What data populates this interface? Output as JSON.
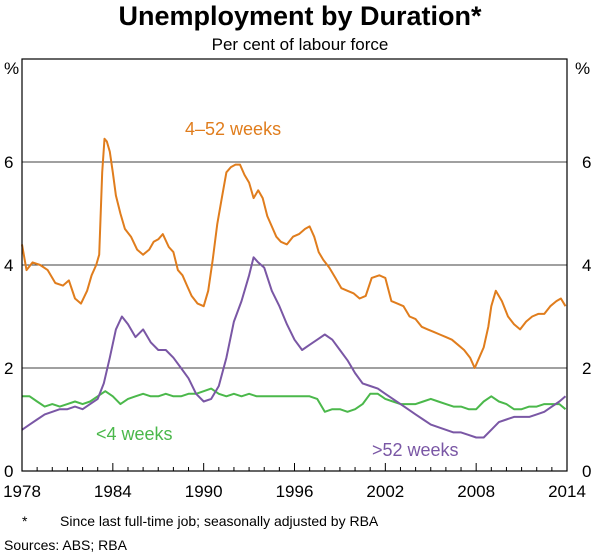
{
  "chart_data": {
    "type": "line",
    "title": "Unemployment by Duration*",
    "subtitle": "Per cent of labour force",
    "ylabel_left": "%",
    "ylabel_right": "%",
    "ylim": [
      0,
      8
    ],
    "yticks": [
      0,
      2,
      4,
      6
    ],
    "xlim": [
      1978,
      2014
    ],
    "xticks": [
      1978,
      1984,
      1990,
      1996,
      2002,
      2008,
      2014
    ],
    "series": [
      {
        "name": "4–52 weeks",
        "color": "#e07d1d",
        "points": [
          [
            1978.0,
            4.4
          ],
          [
            1978.3,
            3.9
          ],
          [
            1978.7,
            4.05
          ],
          [
            1979.2,
            4.0
          ],
          [
            1979.7,
            3.9
          ],
          [
            1980.2,
            3.65
          ],
          [
            1980.7,
            3.6
          ],
          [
            1981.1,
            3.7
          ],
          [
            1981.5,
            3.35
          ],
          [
            1981.9,
            3.25
          ],
          [
            1982.3,
            3.5
          ],
          [
            1982.6,
            3.8
          ],
          [
            1982.9,
            4.0
          ],
          [
            1983.1,
            4.2
          ],
          [
            1983.3,
            5.8
          ],
          [
            1983.45,
            6.45
          ],
          [
            1983.6,
            6.4
          ],
          [
            1983.8,
            6.2
          ],
          [
            1984.0,
            5.8
          ],
          [
            1984.2,
            5.35
          ],
          [
            1984.5,
            5.0
          ],
          [
            1984.8,
            4.7
          ],
          [
            1985.2,
            4.55
          ],
          [
            1985.6,
            4.3
          ],
          [
            1986.0,
            4.2
          ],
          [
            1986.4,
            4.3
          ],
          [
            1986.7,
            4.45
          ],
          [
            1987.0,
            4.5
          ],
          [
            1987.3,
            4.6
          ],
          [
            1987.7,
            4.35
          ],
          [
            1988.0,
            4.25
          ],
          [
            1988.3,
            3.9
          ],
          [
            1988.6,
            3.8
          ],
          [
            1988.9,
            3.6
          ],
          [
            1989.2,
            3.4
          ],
          [
            1989.6,
            3.25
          ],
          [
            1990.0,
            3.2
          ],
          [
            1990.3,
            3.5
          ],
          [
            1990.6,
            4.1
          ],
          [
            1990.9,
            4.8
          ],
          [
            1991.2,
            5.3
          ],
          [
            1991.5,
            5.8
          ],
          [
            1991.8,
            5.9
          ],
          [
            1992.1,
            5.95
          ],
          [
            1992.4,
            5.95
          ],
          [
            1992.7,
            5.75
          ],
          [
            1993.0,
            5.6
          ],
          [
            1993.3,
            5.3
          ],
          [
            1993.6,
            5.45
          ],
          [
            1993.9,
            5.3
          ],
          [
            1994.2,
            4.95
          ],
          [
            1994.5,
            4.75
          ],
          [
            1994.8,
            4.55
          ],
          [
            1995.1,
            4.45
          ],
          [
            1995.5,
            4.4
          ],
          [
            1995.9,
            4.55
          ],
          [
            1996.3,
            4.6
          ],
          [
            1996.7,
            4.7
          ],
          [
            1997.0,
            4.75
          ],
          [
            1997.3,
            4.55
          ],
          [
            1997.6,
            4.25
          ],
          [
            1997.9,
            4.1
          ],
          [
            1998.3,
            3.95
          ],
          [
            1998.7,
            3.75
          ],
          [
            1999.1,
            3.55
          ],
          [
            1999.5,
            3.5
          ],
          [
            1999.9,
            3.45
          ],
          [
            2000.3,
            3.35
          ],
          [
            2000.7,
            3.4
          ],
          [
            2001.1,
            3.75
          ],
          [
            2001.6,
            3.8
          ],
          [
            2002.0,
            3.75
          ],
          [
            2002.4,
            3.3
          ],
          [
            2002.8,
            3.25
          ],
          [
            2003.2,
            3.2
          ],
          [
            2003.6,
            3.0
          ],
          [
            2004.0,
            2.95
          ],
          [
            2004.4,
            2.8
          ],
          [
            2004.8,
            2.75
          ],
          [
            2005.2,
            2.7
          ],
          [
            2005.6,
            2.65
          ],
          [
            2006.0,
            2.6
          ],
          [
            2006.4,
            2.55
          ],
          [
            2006.8,
            2.45
          ],
          [
            2007.2,
            2.35
          ],
          [
            2007.6,
            2.2
          ],
          [
            2007.9,
            2.0
          ],
          [
            2008.2,
            2.2
          ],
          [
            2008.5,
            2.4
          ],
          [
            2008.8,
            2.8
          ],
          [
            2009.0,
            3.2
          ],
          [
            2009.3,
            3.5
          ],
          [
            2009.7,
            3.3
          ],
          [
            2010.1,
            3.0
          ],
          [
            2010.5,
            2.85
          ],
          [
            2010.9,
            2.75
          ],
          [
            2011.3,
            2.9
          ],
          [
            2011.7,
            3.0
          ],
          [
            2012.1,
            3.05
          ],
          [
            2012.5,
            3.05
          ],
          [
            2012.9,
            3.2
          ],
          [
            2013.3,
            3.3
          ],
          [
            2013.6,
            3.35
          ],
          [
            2013.9,
            3.2
          ]
        ]
      },
      {
        "name": "<4 weeks",
        "color": "#4bb84b",
        "points": [
          [
            1978.0,
            1.45
          ],
          [
            1978.5,
            1.45
          ],
          [
            1979.0,
            1.35
          ],
          [
            1979.5,
            1.25
          ],
          [
            1980.0,
            1.3
          ],
          [
            1980.5,
            1.25
          ],
          [
            1981.0,
            1.3
          ],
          [
            1981.5,
            1.35
          ],
          [
            1982.0,
            1.3
          ],
          [
            1982.5,
            1.35
          ],
          [
            1983.0,
            1.45
          ],
          [
            1983.5,
            1.55
          ],
          [
            1984.0,
            1.45
          ],
          [
            1984.5,
            1.3
          ],
          [
            1985.0,
            1.4
          ],
          [
            1985.5,
            1.45
          ],
          [
            1986.0,
            1.5
          ],
          [
            1986.5,
            1.45
          ],
          [
            1987.0,
            1.45
          ],
          [
            1987.5,
            1.5
          ],
          [
            1988.0,
            1.45
          ],
          [
            1988.5,
            1.45
          ],
          [
            1989.0,
            1.5
          ],
          [
            1989.5,
            1.5
          ],
          [
            1990.0,
            1.55
          ],
          [
            1990.5,
            1.6
          ],
          [
            1991.0,
            1.5
          ],
          [
            1991.5,
            1.45
          ],
          [
            1992.0,
            1.5
          ],
          [
            1992.5,
            1.45
          ],
          [
            1993.0,
            1.5
          ],
          [
            1993.5,
            1.45
          ],
          [
            1994.0,
            1.45
          ],
          [
            1994.5,
            1.45
          ],
          [
            1995.0,
            1.45
          ],
          [
            1995.5,
            1.45
          ],
          [
            1996.0,
            1.45
          ],
          [
            1996.5,
            1.45
          ],
          [
            1997.0,
            1.45
          ],
          [
            1997.5,
            1.4
          ],
          [
            1998.0,
            1.15
          ],
          [
            1998.5,
            1.2
          ],
          [
            1999.0,
            1.2
          ],
          [
            1999.5,
            1.15
          ],
          [
            2000.0,
            1.2
          ],
          [
            2000.5,
            1.3
          ],
          [
            2001.0,
            1.5
          ],
          [
            2001.5,
            1.5
          ],
          [
            2002.0,
            1.4
          ],
          [
            2002.5,
            1.35
          ],
          [
            2003.0,
            1.3
          ],
          [
            2003.5,
            1.3
          ],
          [
            2004.0,
            1.3
          ],
          [
            2004.5,
            1.35
          ],
          [
            2005.0,
            1.4
          ],
          [
            2005.5,
            1.35
          ],
          [
            2006.0,
            1.3
          ],
          [
            2006.5,
            1.25
          ],
          [
            2007.0,
            1.25
          ],
          [
            2007.5,
            1.2
          ],
          [
            2008.0,
            1.2
          ],
          [
            2008.5,
            1.35
          ],
          [
            2009.0,
            1.45
          ],
          [
            2009.5,
            1.35
          ],
          [
            2010.0,
            1.3
          ],
          [
            2010.5,
            1.2
          ],
          [
            2011.0,
            1.2
          ],
          [
            2011.5,
            1.25
          ],
          [
            2012.0,
            1.25
          ],
          [
            2012.5,
            1.3
          ],
          [
            2013.0,
            1.3
          ],
          [
            2013.5,
            1.3
          ],
          [
            2013.9,
            1.2
          ]
        ]
      },
      {
        "name": ">52 weeks",
        "color": "#7a57a5",
        "points": [
          [
            1978.0,
            0.8
          ],
          [
            1978.5,
            0.9
          ],
          [
            1979.0,
            1.0
          ],
          [
            1979.5,
            1.1
          ],
          [
            1980.0,
            1.15
          ],
          [
            1980.5,
            1.2
          ],
          [
            1981.0,
            1.2
          ],
          [
            1981.5,
            1.25
          ],
          [
            1982.0,
            1.2
          ],
          [
            1982.5,
            1.3
          ],
          [
            1983.0,
            1.4
          ],
          [
            1983.4,
            1.7
          ],
          [
            1983.8,
            2.2
          ],
          [
            1984.2,
            2.75
          ],
          [
            1984.6,
            3.0
          ],
          [
            1985.0,
            2.85
          ],
          [
            1985.5,
            2.6
          ],
          [
            1986.0,
            2.75
          ],
          [
            1986.5,
            2.5
          ],
          [
            1987.0,
            2.35
          ],
          [
            1987.5,
            2.35
          ],
          [
            1988.0,
            2.2
          ],
          [
            1988.5,
            2.0
          ],
          [
            1989.0,
            1.8
          ],
          [
            1989.5,
            1.5
          ],
          [
            1990.0,
            1.35
          ],
          [
            1990.5,
            1.4
          ],
          [
            1991.0,
            1.65
          ],
          [
            1991.5,
            2.2
          ],
          [
            1992.0,
            2.9
          ],
          [
            1992.5,
            3.3
          ],
          [
            1993.0,
            3.8
          ],
          [
            1993.3,
            4.15
          ],
          [
            1993.6,
            4.05
          ],
          [
            1994.0,
            3.95
          ],
          [
            1994.5,
            3.5
          ],
          [
            1995.0,
            3.2
          ],
          [
            1995.5,
            2.85
          ],
          [
            1996.0,
            2.55
          ],
          [
            1996.5,
            2.35
          ],
          [
            1997.0,
            2.45
          ],
          [
            1997.5,
            2.55
          ],
          [
            1998.0,
            2.65
          ],
          [
            1998.5,
            2.55
          ],
          [
            1999.0,
            2.35
          ],
          [
            1999.5,
            2.15
          ],
          [
            2000.0,
            1.9
          ],
          [
            2000.5,
            1.7
          ],
          [
            2001.0,
            1.65
          ],
          [
            2001.5,
            1.6
          ],
          [
            2002.0,
            1.5
          ],
          [
            2002.5,
            1.4
          ],
          [
            2003.0,
            1.3
          ],
          [
            2003.5,
            1.2
          ],
          [
            2004.0,
            1.1
          ],
          [
            2004.5,
            1.0
          ],
          [
            2005.0,
            0.9
          ],
          [
            2005.5,
            0.85
          ],
          [
            2006.0,
            0.8
          ],
          [
            2006.5,
            0.75
          ],
          [
            2007.0,
            0.75
          ],
          [
            2007.5,
            0.7
          ],
          [
            2008.0,
            0.65
          ],
          [
            2008.5,
            0.65
          ],
          [
            2009.0,
            0.8
          ],
          [
            2009.5,
            0.95
          ],
          [
            2010.0,
            1.0
          ],
          [
            2010.5,
            1.05
          ],
          [
            2011.0,
            1.05
          ],
          [
            2011.5,
            1.05
          ],
          [
            2012.0,
            1.1
          ],
          [
            2012.5,
            1.15
          ],
          [
            2013.0,
            1.25
          ],
          [
            2013.5,
            1.35
          ],
          [
            2013.9,
            1.45
          ]
        ]
      }
    ],
    "series_labels": [
      "4–52 weeks",
      "<4 weeks",
      ">52 weeks"
    ]
  },
  "footnote": "Since last full-time job; seasonally adjusted by RBA",
  "footnote_marker": "*",
  "sources": "Sources:  ABS; RBA"
}
